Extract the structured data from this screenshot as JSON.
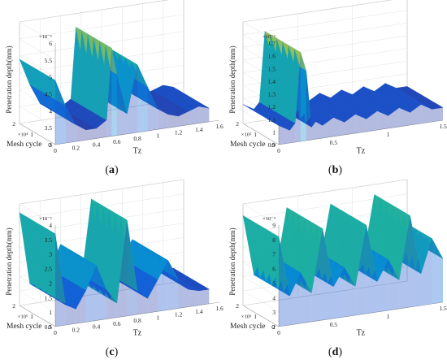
{
  "chart_data": [
    {
      "type": "surface",
      "panel_label": "a",
      "zlabel": "Penetration depth(mm)",
      "xlabel": "Tz",
      "ylabel": "Mesh cycle",
      "z_exponent": "×10⁻³",
      "y_exponent": "×10⁴",
      "z_ticks": [
        "3",
        "3.5",
        "4",
        "4.5",
        "5",
        "5.5",
        "6"
      ],
      "y_ticks": [
        "0",
        "1",
        "2"
      ],
      "x_ticks": [
        "0",
        "0.2",
        "0.4",
        "0.6",
        "0.8",
        "1",
        "1.2",
        "1.4",
        "1.6"
      ],
      "zlim": [
        3,
        6
      ],
      "xlim": [
        0,
        1.6
      ],
      "ylim": [
        0,
        2
      ],
      "profile_x": [
        0.0,
        0.1,
        0.2,
        0.3,
        0.4,
        0.5,
        0.55,
        0.6,
        0.7,
        0.8,
        0.9,
        1.0,
        1.1,
        1.2,
        1.3,
        1.4,
        1.5
      ],
      "profile_z": [
        4.9,
        4.1,
        3.5,
        3.3,
        3.3,
        3.5,
        5.6,
        4.8,
        3.6,
        5.0,
        4.3,
        3.6,
        3.4,
        3.3,
        3.4,
        3.5,
        3.4
      ]
    },
    {
      "type": "surface",
      "panel_label": "b",
      "zlabel": "Penetration depth(mm)",
      "xlabel": "Tz",
      "ylabel": "Mesh cycle",
      "z_exponent": "×10⁻³",
      "y_exponent": "×10⁵",
      "z_ticks": [
        "0.9",
        "1",
        "1.1",
        "1.2",
        "1.3",
        "1.4",
        "1.5",
        "1.6",
        "1.7"
      ],
      "y_ticks": [
        "0",
        "1",
        "2"
      ],
      "x_ticks": [
        "0",
        "0.5",
        "1",
        "1.5"
      ],
      "zlim": [
        0.9,
        1.7
      ],
      "xlim": [
        0,
        1.5
      ],
      "ylim": [
        0,
        2
      ],
      "profile_x": [
        0.0,
        0.1,
        0.15,
        0.2,
        0.25,
        0.3,
        0.35,
        0.4,
        0.5,
        0.6,
        0.7,
        0.8,
        0.9,
        1.0,
        1.1,
        1.2,
        1.3,
        1.4,
        1.5
      ],
      "profile_z": [
        1.05,
        1.0,
        1.05,
        1.6,
        1.45,
        1.0,
        1.05,
        1.0,
        1.05,
        1.0,
        1.05,
        1.0,
        1.05,
        1.0,
        1.05,
        1.0,
        1.05,
        1.0,
        1.0
      ]
    },
    {
      "type": "surface",
      "panel_label": "c",
      "zlabel": "Penetration depth(mm)",
      "xlabel": "Tz",
      "ylabel": "Mesh cycle",
      "z_exponent": "×10⁻³",
      "y_exponent": "×10⁵",
      "z_ticks": [
        "0.5",
        "1",
        "1.5",
        "2",
        "2.5",
        "3",
        "3.5",
        "4"
      ],
      "y_ticks": [
        "0",
        "1",
        "2"
      ],
      "x_ticks": [
        "0",
        "0.2",
        "0.4",
        "0.6",
        "0.8",
        "1",
        "1.2",
        "1.4",
        "1.6"
      ],
      "zlim": [
        0.5,
        4
      ],
      "xlim": [
        0,
        1.6
      ],
      "ylim": [
        0,
        2
      ],
      "profile_x": [
        0.0,
        0.1,
        0.2,
        0.3,
        0.4,
        0.5,
        0.6,
        0.7,
        0.8,
        0.9,
        1.0,
        1.1,
        1.2,
        1.3,
        1.4,
        1.5
      ],
      "profile_z": [
        3.7,
        1.2,
        1.0,
        1.6,
        2.4,
        1.5,
        1.0,
        3.8,
        1.3,
        1.0,
        1.6,
        2.2,
        1.5,
        1.1,
        1.0,
        1.0
      ]
    },
    {
      "type": "surface",
      "panel_label": "d",
      "zlabel": "Penetration depth(mm)",
      "xlabel": "Tz",
      "ylabel": "Mesh cycle",
      "z_exponent": "×10⁻⁴",
      "y_exponent": "×10⁵",
      "z_ticks": [
        "2",
        "3",
        "4",
        "5",
        "6",
        "7",
        "8",
        "9"
      ],
      "y_ticks": [
        "0",
        "1",
        "2"
      ],
      "x_ticks": [
        "0",
        "0.5",
        "1",
        "1.5"
      ],
      "zlim": [
        2,
        9
      ],
      "xlim": [
        0,
        1.5
      ],
      "ylim": [
        0,
        2
      ],
      "profile_x": [
        0.0,
        0.1,
        0.2,
        0.3,
        0.4,
        0.5,
        0.6,
        0.7,
        0.8,
        0.9,
        1.0,
        1.1,
        1.2,
        1.3,
        1.4,
        1.5
      ],
      "profile_z": [
        8.2,
        4.0,
        5.5,
        4.0,
        8.3,
        4.2,
        5.4,
        4.0,
        8.1,
        4.1,
        5.5,
        4.0,
        8.3,
        4.2,
        6.5,
        5.0
      ]
    }
  ]
}
